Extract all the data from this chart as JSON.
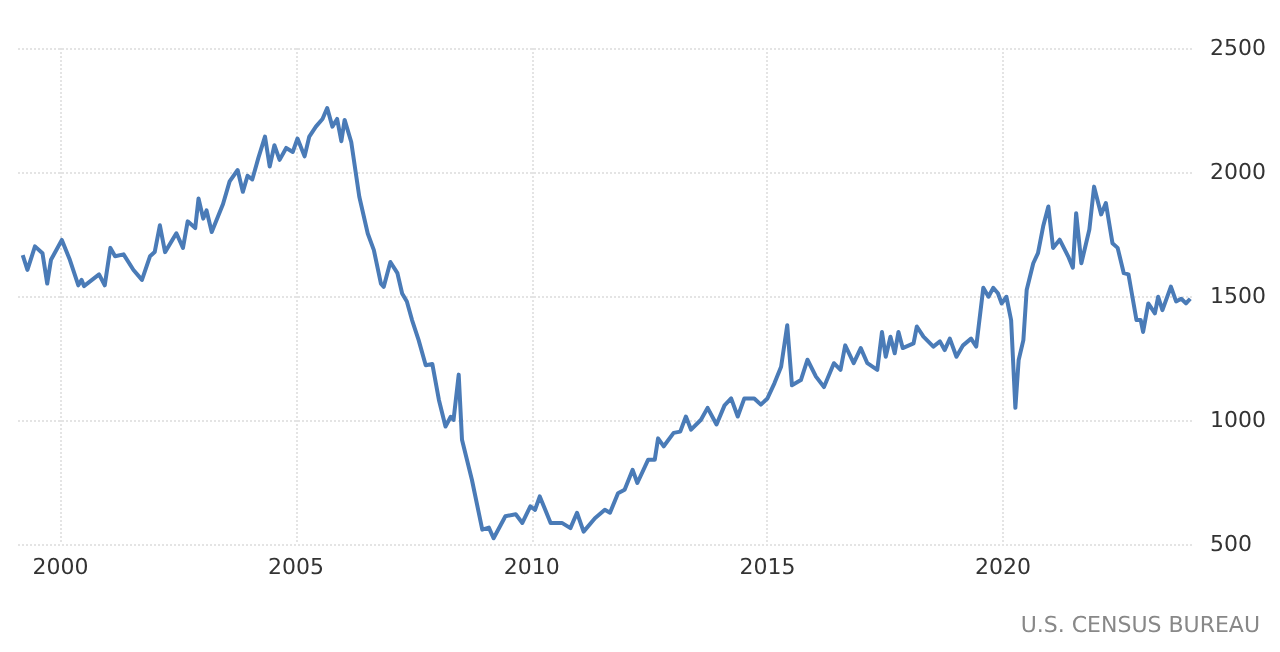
{
  "chart_data": {
    "type": "line",
    "annotations": [
      "U.S. CENSUS BUREAU"
    ],
    "grid": true,
    "line_style": "solid",
    "marker": "none",
    "xlim": [
      1999.1,
      2024.05
    ],
    "xticks": [
      2000,
      2005,
      2010,
      2015,
      2020
    ],
    "ylim": [
      500,
      2500
    ],
    "yticks": [
      500,
      1000,
      1500,
      2000,
      2500
    ],
    "series": [
      {
        "color": "#4a7bb7",
        "x": [
          1999.2,
          1999.3,
          1999.46,
          1999.62,
          1999.72,
          1999.8,
          2000.03,
          2000.2,
          2000.38,
          2000.45,
          2000.5,
          2000.82,
          2000.94,
          2001.06,
          2001.16,
          2001.34,
          2001.55,
          2001.73,
          2001.9,
          2002.0,
          2002.11,
          2002.22,
          2002.46,
          2002.6,
          2002.7,
          2002.86,
          2002.93,
          2003.03,
          2003.1,
          2003.21,
          2003.45,
          2003.59,
          2003.76,
          2003.87,
          2003.97,
          2004.07,
          2004.2,
          2004.34,
          2004.44,
          2004.54,
          2004.65,
          2004.79,
          2004.93,
          2005.03,
          2005.18,
          2005.28,
          2005.42,
          2005.56,
          2005.66,
          2005.77,
          2005.87,
          2005.96,
          2006.03,
          2006.17,
          2006.34,
          2006.52,
          2006.65,
          2006.8,
          2006.86,
          2007.0,
          2007.15,
          2007.25,
          2007.35,
          2007.46,
          2007.6,
          2007.75,
          2007.89,
          2008.03,
          2008.17,
          2008.28,
          2008.34,
          2008.45,
          2008.52,
          2008.73,
          2008.95,
          2009.09,
          2009.19,
          2009.44,
          2009.66,
          2009.8,
          2009.97,
          2010.07,
          2010.17,
          2010.4,
          2010.64,
          2010.82,
          2010.96,
          2011.1,
          2011.34,
          2011.55,
          2011.66,
          2011.83,
          2011.97,
          2012.14,
          2012.24,
          2012.47,
          2012.61,
          2012.68,
          2012.8,
          2013.01,
          2013.15,
          2013.27,
          2013.38,
          2013.59,
          2013.73,
          2013.92,
          2014.09,
          2014.23,
          2014.37,
          2014.51,
          2014.72,
          2014.86,
          2015.0,
          2015.15,
          2015.29,
          2015.42,
          2015.52,
          2015.71,
          2015.85,
          2016.03,
          2016.2,
          2016.41,
          2016.55,
          2016.65,
          2016.83,
          2016.98,
          2017.12,
          2017.33,
          2017.43,
          2017.51,
          2017.61,
          2017.7,
          2017.78,
          2017.87,
          2018.1,
          2018.17,
          2018.31,
          2018.52,
          2018.66,
          2018.76,
          2018.87,
          2019.01,
          2019.15,
          2019.32,
          2019.43,
          2019.58,
          2019.69,
          2019.79,
          2019.89,
          2019.97,
          2020.07,
          2020.17,
          2020.26,
          2020.33,
          2020.43,
          2020.5,
          2020.64,
          2020.74,
          2020.85,
          2020.96,
          2021.06,
          2021.2,
          2021.38,
          2021.48,
          2021.55,
          2021.66,
          2021.83,
          2021.93,
          2022.08,
          2022.18,
          2022.32,
          2022.43,
          2022.56,
          2022.66,
          2022.73,
          2022.83,
          2022.92,
          2022.97,
          2023.08,
          2023.22,
          2023.29,
          2023.38,
          2023.56,
          2023.67,
          2023.78,
          2023.88,
          2023.97
        ],
        "values": [
          1665,
          1605,
          1700,
          1672,
          1550,
          1646,
          1726,
          1646,
          1543,
          1565,
          1540,
          1587,
          1543,
          1694,
          1660,
          1668,
          1605,
          1565,
          1660,
          1677,
          1785,
          1677,
          1753,
          1694,
          1801,
          1774,
          1893,
          1812,
          1845,
          1758,
          1871,
          1962,
          2008,
          1920,
          1985,
          1970,
          2057,
          2143,
          2022,
          2108,
          2049,
          2097,
          2081,
          2135,
          2063,
          2143,
          2183,
          2214,
          2258,
          2183,
          2214,
          2124,
          2210,
          2121,
          1901,
          1752,
          1685,
          1550,
          1537,
          1637,
          1592,
          1510,
          1478,
          1403,
          1322,
          1221,
          1226,
          1081,
          974,
          1013,
          1000,
          1183,
          920,
          759,
          558,
          566,
          523,
          612,
          620,
          585,
          652,
          638,
          692,
          585,
          585,
          564,
          626,
          550,
          604,
          638,
          626,
          705,
          719,
          799,
          746,
          840,
          840,
          926,
          894,
          948,
          953,
          1014,
          961,
          1001,
          1049,
          982,
          1059,
          1087,
          1014,
          1087,
          1087,
          1062,
          1087,
          1149,
          1215,
          1382,
          1140,
          1161,
          1243,
          1175,
          1133,
          1229,
          1202,
          1301,
          1229,
          1290,
          1229,
          1202,
          1355,
          1255,
          1336,
          1269,
          1355,
          1290,
          1309,
          1377,
          1336,
          1296,
          1317,
          1282,
          1328,
          1255,
          1301,
          1328,
          1296,
          1533,
          1497,
          1533,
          1511,
          1470,
          1497,
          1403,
          1049,
          1242,
          1322,
          1524,
          1632,
          1673,
          1781,
          1861,
          1694,
          1727,
          1660,
          1614,
          1834,
          1632,
          1768,
          1941,
          1829,
          1875,
          1713,
          1694,
          1592,
          1587,
          1511,
          1403,
          1403,
          1355,
          1470,
          1430,
          1497,
          1443,
          1538,
          1478,
          1489,
          1470,
          1489
        ]
      }
    ]
  }
}
